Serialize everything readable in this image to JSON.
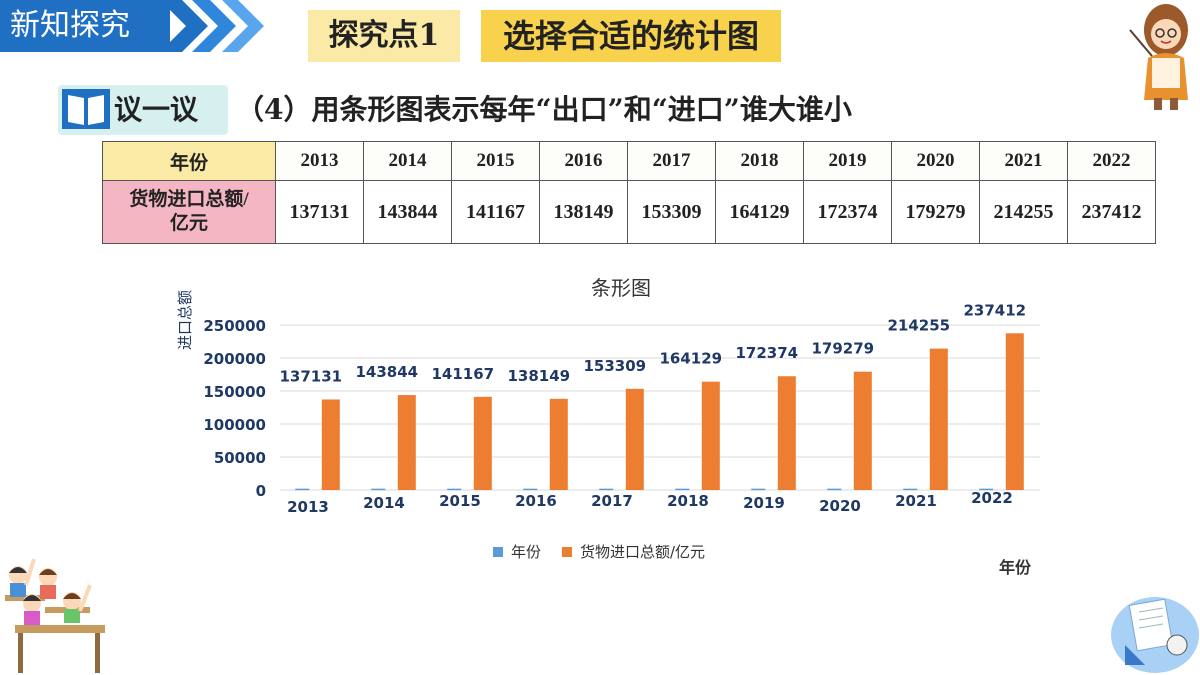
{
  "header": {
    "section_tag": "新知探究",
    "explore_point": "探究点1",
    "topic": "选择合适的统计图"
  },
  "discuss": {
    "label": "议一议",
    "question": "（4）用条形图表示每年“出口”和“进口”谁大谁小"
  },
  "table": {
    "row1_header": "年份",
    "row2_header_line1": "货物进口总额/",
    "row2_header_line2": "亿元",
    "years": [
      "2013",
      "2014",
      "2015",
      "2016",
      "2017",
      "2018",
      "2019",
      "2020",
      "2021",
      "2022"
    ],
    "values": [
      "137131",
      "143844",
      "141167",
      "138149",
      "153309",
      "164129",
      "172374",
      "179279",
      "214255",
      "237412"
    ]
  },
  "colors": {
    "accent_blue": "#1f6fc2",
    "bar_orange": "#ed7d31",
    "series_blue": "#5b9bd5",
    "axis_text": "#1f3864"
  },
  "chart_data": {
    "type": "bar",
    "title": "条形图",
    "xlabel": "年份",
    "ylabel": "进口总额",
    "ylim": [
      0,
      250000
    ],
    "yticks": [
      0,
      50000,
      100000,
      150000,
      200000,
      250000
    ],
    "grid": true,
    "legend_position": "bottom",
    "categories": [
      "2013",
      "2014",
      "2015",
      "2016",
      "2017",
      "2018",
      "2019",
      "2020",
      "2021",
      "2022"
    ],
    "series": [
      {
        "name": "年份",
        "values": [
          2013,
          2014,
          2015,
          2016,
          2017,
          2018,
          2019,
          2020,
          2021,
          2022
        ]
      },
      {
        "name": "货物进口总额/亿元",
        "values": [
          137131,
          143844,
          141167,
          138149,
          153309,
          164129,
          172374,
          179279,
          214255,
          237412
        ]
      }
    ]
  }
}
